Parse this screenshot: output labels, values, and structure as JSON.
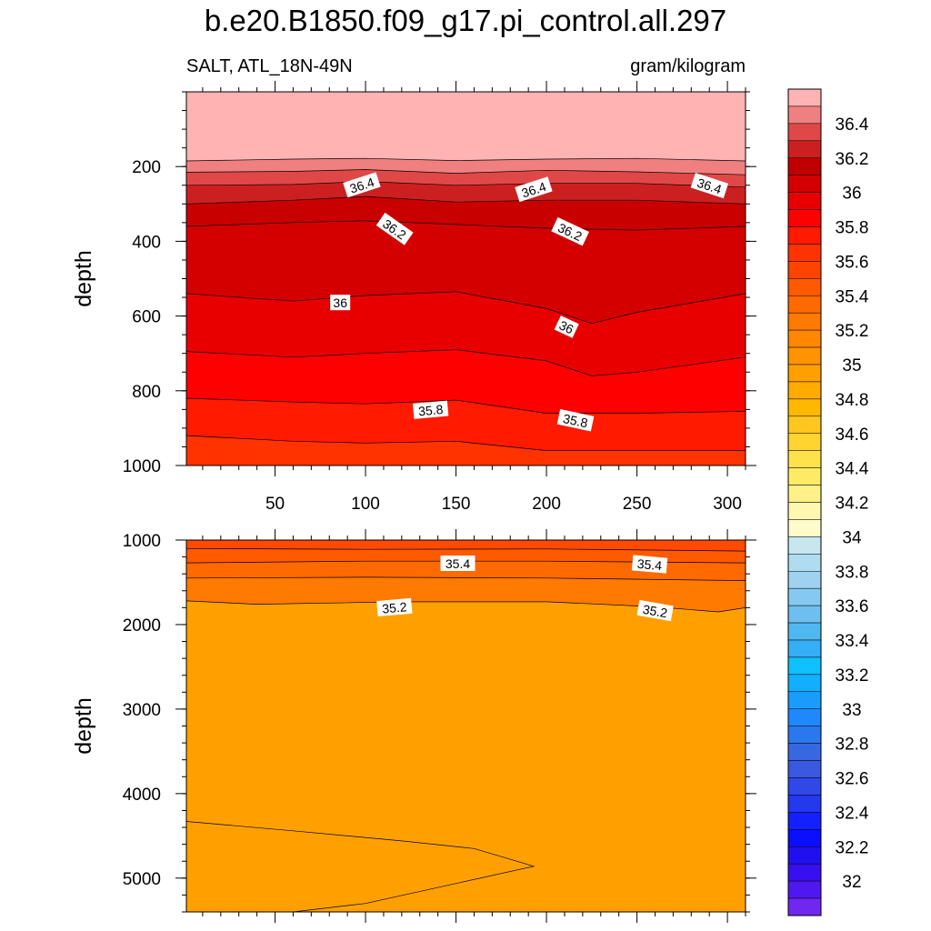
{
  "title": "b.e20.B1850.f09_g17.pi_control.all.297",
  "left_string": "SALT, ATL_18N-49N",
  "right_string": "gram/kilogram",
  "chart_data": [
    {
      "type": "contour",
      "panel": "upper",
      "ylabel": "depth",
      "ylim": [
        0,
        1000
      ],
      "y_reversed": true,
      "xlim": [
        1,
        310
      ],
      "x_ticks": [
        50,
        100,
        150,
        200,
        250,
        300
      ],
      "y_ticks": [
        200,
        400,
        600,
        800,
        1000
      ],
      "contour_lines": [
        {
          "level": 36.5,
          "depths": [
            [
              1,
              185
            ],
            [
              60,
              180
            ],
            [
              100,
              178
            ],
            [
              150,
              184
            ],
            [
              200,
              180
            ],
            [
              250,
              178
            ],
            [
              310,
              185
            ]
          ]
        },
        {
          "level": 36.4,
          "depths": [
            [
              1,
              215
            ],
            [
              60,
              213
            ],
            [
              100,
              208
            ],
            [
              150,
              218
            ],
            [
              200,
              210
            ],
            [
              250,
              214
            ],
            [
              310,
              222
            ]
          ]
        },
        {
          "level": 36.3,
          "depths": [
            [
              1,
              250
            ],
            [
              60,
              248
            ],
            [
              100,
              240
            ],
            [
              150,
              250
            ],
            [
              200,
              245
            ],
            [
              250,
              245
            ],
            [
              310,
              255
            ]
          ]
        },
        {
          "level": 36.2,
          "depths": [
            [
              1,
              300
            ],
            [
              60,
              290
            ],
            [
              100,
              280
            ],
            [
              150,
              295
            ],
            [
              200,
              290
            ],
            [
              250,
              290
            ],
            [
              310,
              300
            ]
          ]
        },
        {
          "level": 36.1,
          "depths": [
            [
              1,
              360
            ],
            [
              60,
              350
            ],
            [
              100,
              345
            ],
            [
              150,
              355
            ],
            [
              200,
              365
            ],
            [
              250,
              370
            ],
            [
              310,
              360
            ]
          ]
        },
        {
          "level": 36.0,
          "depths": [
            [
              1,
              540
            ],
            [
              60,
              560
            ],
            [
              100,
              545
            ],
            [
              150,
              535
            ],
            [
              200,
              580
            ],
            [
              225,
              620
            ],
            [
              250,
              590
            ],
            [
              310,
              540
            ]
          ]
        },
        {
          "level": 35.9,
          "depths": [
            [
              1,
              695
            ],
            [
              60,
              710
            ],
            [
              100,
              700
            ],
            [
              150,
              690
            ],
            [
              200,
              720
            ],
            [
              225,
              760
            ],
            [
              250,
              750
            ],
            [
              310,
              710
            ]
          ]
        },
        {
          "level": 35.8,
          "depths": [
            [
              1,
              820
            ],
            [
              60,
              830
            ],
            [
              100,
              835
            ],
            [
              150,
              825
            ],
            [
              200,
              860
            ],
            [
              250,
              860
            ],
            [
              310,
              855
            ]
          ]
        },
        {
          "level": 35.7,
          "depths": [
            [
              1,
              920
            ],
            [
              60,
              935
            ],
            [
              100,
              940
            ],
            [
              150,
              935
            ],
            [
              200,
              960
            ],
            [
              250,
              960
            ],
            [
              310,
              960
            ]
          ]
        }
      ],
      "labels": [
        {
          "text": "36.4",
          "x": 98,
          "y": 250,
          "angle": -18
        },
        {
          "text": "36.4",
          "x": 193,
          "y": 262,
          "angle": -18
        },
        {
          "text": "36.4",
          "x": 290,
          "y": 252,
          "angle": 18
        },
        {
          "text": "36.2",
          "x": 116,
          "y": 368,
          "angle": 35
        },
        {
          "text": "36.2",
          "x": 213,
          "y": 375,
          "angle": 25
        },
        {
          "text": "36",
          "x": 86,
          "y": 565,
          "angle": 0
        },
        {
          "text": "36",
          "x": 211,
          "y": 630,
          "angle": 25
        },
        {
          "text": "35.8",
          "x": 136,
          "y": 852,
          "angle": -5
        },
        {
          "text": "35.8",
          "x": 216,
          "y": 880,
          "angle": 12
        }
      ]
    },
    {
      "type": "contour",
      "panel": "lower",
      "ylabel": "depth",
      "ylim": [
        1000,
        5400
      ],
      "y_reversed": true,
      "xlim": [
        1,
        310
      ],
      "x_ticks": [
        50,
        100,
        150,
        200,
        250,
        300
      ],
      "y_ticks": [
        1000,
        2000,
        3000,
        4000,
        5000
      ],
      "contour_lines": [
        {
          "level": 35.5,
          "depths": [
            [
              1,
              1100
            ],
            [
              100,
              1110
            ],
            [
              200,
              1105
            ],
            [
              310,
              1130
            ]
          ]
        },
        {
          "level": 35.4,
          "depths": [
            [
              1,
              1270
            ],
            [
              100,
              1250
            ],
            [
              200,
              1250
            ],
            [
              310,
              1270
            ]
          ]
        },
        {
          "level": 35.3,
          "depths": [
            [
              1,
              1450
            ],
            [
              100,
              1440
            ],
            [
              200,
              1450
            ],
            [
              310,
              1480
            ]
          ]
        },
        {
          "level": 35.2,
          "depths": [
            [
              1,
              1720
            ],
            [
              40,
              1760
            ],
            [
              120,
              1730
            ],
            [
              200,
              1730
            ],
            [
              260,
              1790
            ],
            [
              295,
              1850
            ],
            [
              310,
              1800
            ]
          ]
        },
        {
          "level": 35.1,
          "depths": [
            [
              1,
              4330
            ],
            [
              60,
              4440
            ],
            [
              120,
              4560
            ],
            [
              160,
              4650
            ],
            [
              193,
              4860
            ],
            [
              100,
              5300
            ],
            [
              60,
              5400
            ]
          ]
        }
      ],
      "labels": [
        {
          "text": "35.4",
          "x": 151,
          "y": 1280,
          "angle": 0
        },
        {
          "text": "35.4",
          "x": 257,
          "y": 1290,
          "angle": 5
        },
        {
          "text": "35.2",
          "x": 116,
          "y": 1800,
          "angle": -5
        },
        {
          "text": "35.2",
          "x": 260,
          "y": 1840,
          "angle": 10
        }
      ]
    }
  ],
  "colorbar": {
    "labels": [
      "36.4",
      "36.2",
      "36",
      "35.8",
      "35.6",
      "35.4",
      "35.2",
      "35",
      "34.8",
      "34.6",
      "34.4",
      "34.2",
      "34",
      "33.8",
      "33.6",
      "33.4",
      "33.2",
      "33",
      "32.8",
      "32.6",
      "32.4",
      "32.2",
      "32"
    ],
    "colors": [
      "#ffb3b3",
      "#f08080",
      "#e04848",
      "#cc2020",
      "#c00000",
      "#d40000",
      "#e80000",
      "#ff0000",
      "#ff1a00",
      "#ff3300",
      "#ff4400",
      "#ff5a00",
      "#ff6a00",
      "#ff7a00",
      "#ff8800",
      "#ff9400",
      "#ffa000",
      "#ffab00",
      "#ffb800",
      "#ffc620",
      "#ffd430",
      "#ffe24a",
      "#ffea66",
      "#fff088",
      "#fff7b0",
      "#fffccc",
      "#c8e6f0",
      "#b0dcf2",
      "#9ed2f0",
      "#86c9f0",
      "#6ebff0",
      "#50b8f0",
      "#36aef5",
      "#10c0ff",
      "#10b0ff",
      "#1a9cff",
      "#2088ff",
      "#2a78f0",
      "#3868e0",
      "#3a58e0",
      "#3048e8",
      "#2438f0",
      "#1420ff",
      "#0a10ff",
      "#2010f0",
      "#3810f0",
      "#5018f0",
      "#7028f0"
    ]
  }
}
